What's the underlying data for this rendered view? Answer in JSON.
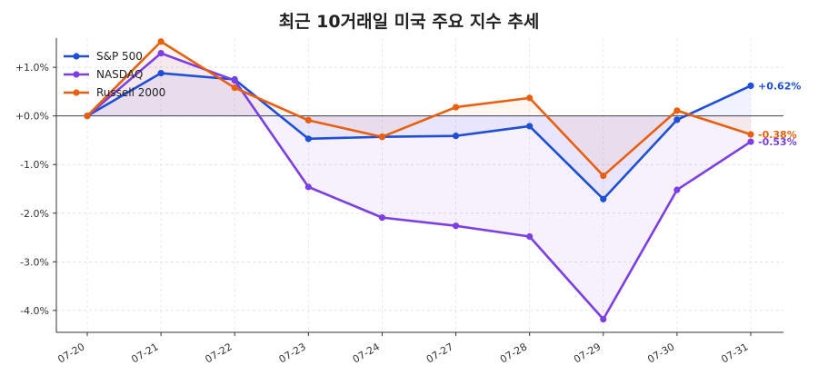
{
  "chart_data": {
    "type": "line",
    "title": "최근 10거래일 미국 주요 지수 추세",
    "xlabel": "",
    "ylabel": "",
    "x": [
      "07-20",
      "07-21",
      "07-22",
      "07-23",
      "07-24",
      "07-27",
      "07-28",
      "07-29",
      "07-30",
      "07-31"
    ],
    "y_ticks": [
      "+1.0%",
      "+0.0%",
      "-1.0%",
      "-2.0%",
      "-3.0%",
      "-4.0%"
    ],
    "y_tick_values": [
      1.0,
      0.0,
      -1.0,
      -2.0,
      -3.0,
      -4.0
    ],
    "ylim": [
      -4.45,
      1.6
    ],
    "grid": true,
    "zero_line": true,
    "legend_position": "top-left",
    "series": [
      {
        "name": "S&P 500",
        "color": "#1f4fd6",
        "fill": "#2d55ff",
        "values": [
          0.0,
          0.88,
          0.75,
          -0.47,
          -0.43,
          -0.41,
          -0.21,
          -1.71,
          -0.08,
          0.62
        ],
        "end_label": "+0.62%"
      },
      {
        "name": "NASDAQ",
        "color": "#7b3fe4",
        "fill": "#7b3fe4",
        "values": [
          0.0,
          1.29,
          0.73,
          -1.46,
          -2.09,
          -2.26,
          -2.48,
          -4.18,
          -1.52,
          -0.53
        ],
        "end_label": "-0.53%"
      },
      {
        "name": "Russell 2000",
        "color": "#e8600f",
        "fill": "#ff7a1a",
        "values": [
          0.0,
          1.53,
          0.58,
          -0.09,
          -0.43,
          0.18,
          0.37,
          -1.23,
          0.11,
          -0.38
        ],
        "end_label": "-0.38%"
      }
    ]
  }
}
